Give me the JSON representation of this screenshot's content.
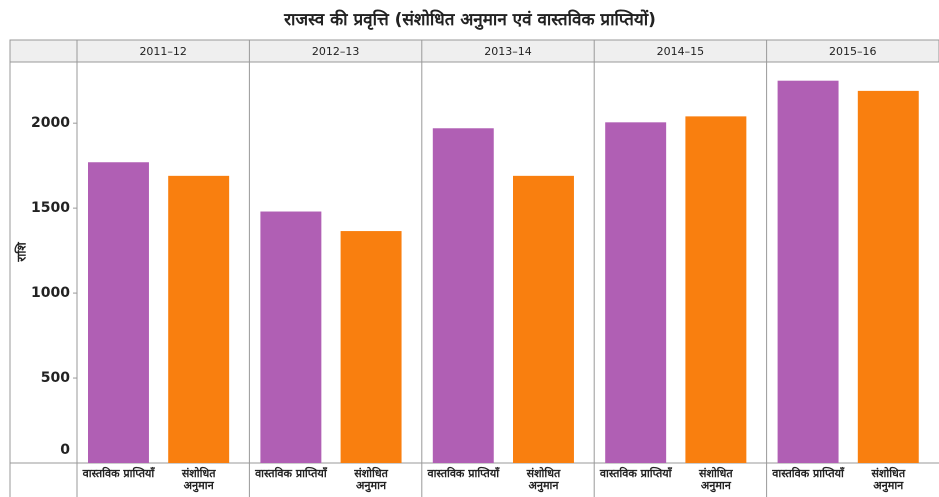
{
  "chart_data": {
    "type": "bar",
    "title": "राजस्व की प्रवृत्ति (संशोधित अनुमान एवं वास्तविक प्राप्तियों)",
    "ylabel": "राशि",
    "categories": [
      "2011–12",
      "2012–13",
      "2013–14",
      "2014–15",
      "2015–16"
    ],
    "series": [
      {
        "name": "वास्तविक प्राप्तियाँ",
        "color": "#b05fb4",
        "values": [
          1770,
          1480,
          1970,
          2005,
          2250
        ]
      },
      {
        "name": "संशोधित अनुमान",
        "color": "#f97f0f",
        "values": [
          1690,
          1365,
          1690,
          2040,
          2190
        ]
      }
    ],
    "ylim": [
      0,
      2360
    ],
    "yticks": [
      0,
      500,
      1000,
      1500,
      2000
    ]
  }
}
